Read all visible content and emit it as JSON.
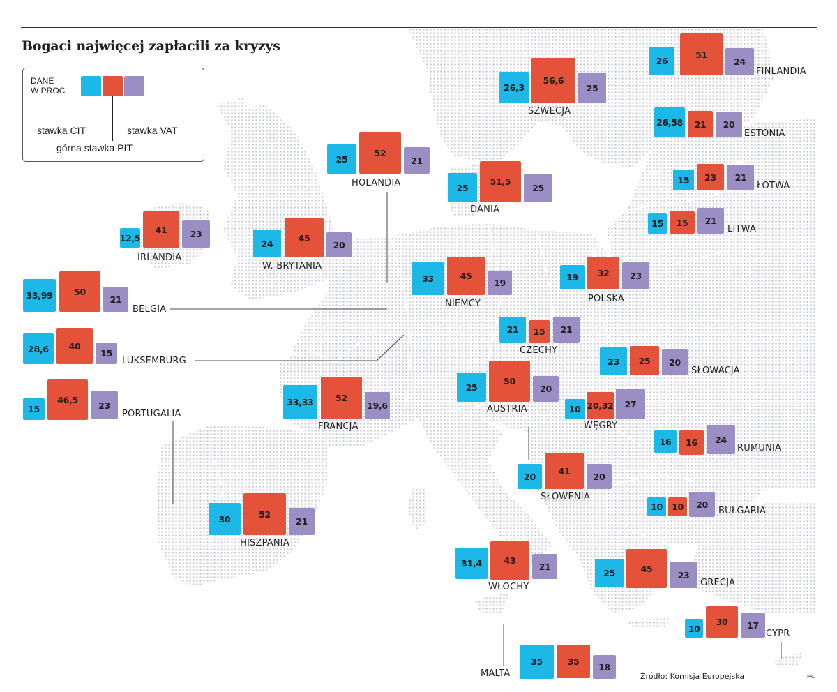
{
  "title": "Bogaci najwięcej zapłacili za kryzys",
  "legend": {
    "heading_line1": "DANE",
    "heading_line2": "W PROC.",
    "cit_label": "stawka CIT",
    "pit_label": "górna stawka PIT",
    "vat_label": "stawka VAT"
  },
  "colors": {
    "cit": "#1bb8e8",
    "pit": "#e4523a",
    "vat": "#9b8ec4",
    "map_land": "#c9cbd6",
    "map_border": "#b9bed4"
  },
  "countries": [
    {
      "name": "FINLANDIA",
      "cit": "26",
      "pit": "51",
      "vat": "24"
    },
    {
      "name": "SZWECJA",
      "cit": "26,3",
      "pit": "56,6",
      "vat": "25"
    },
    {
      "name": "ESTONIA",
      "cit": "26,58",
      "pit": "21",
      "vat": "20"
    },
    {
      "name": "HOLANDIA",
      "cit": "25",
      "pit": "52",
      "vat": "21"
    },
    {
      "name": "DANIA",
      "cit": "25",
      "pit": "51,5",
      "vat": "25"
    },
    {
      "name": "ŁOTWA",
      "cit": "15",
      "pit": "23",
      "vat": "21"
    },
    {
      "name": "LITWA",
      "cit": "15",
      "pit": "15",
      "vat": "21"
    },
    {
      "name": "IRLANDIA",
      "cit": "12,5",
      "pit": "41",
      "vat": "23"
    },
    {
      "name": "W. BRYTANIA",
      "cit": "24",
      "pit": "45",
      "vat": "20"
    },
    {
      "name": "NIEMCY",
      "cit": "33",
      "pit": "45",
      "vat": "19"
    },
    {
      "name": "POLSKA",
      "cit": "19",
      "pit": "32",
      "vat": "23"
    },
    {
      "name": "BELGIA",
      "cit": "33,99",
      "pit": "50",
      "vat": "21"
    },
    {
      "name": "CZECHY",
      "cit": "21",
      "pit": "15",
      "vat": "21"
    },
    {
      "name": "LUKSEMBURG",
      "cit": "28,6",
      "pit": "40",
      "vat": "15"
    },
    {
      "name": "SŁOWACJA",
      "cit": "23",
      "pit": "25",
      "vat": "20"
    },
    {
      "name": "AUSTRIA",
      "cit": "25",
      "pit": "50",
      "vat": "20"
    },
    {
      "name": "PORTUGALIA",
      "cit": "15",
      "pit": "46,5",
      "vat": "23"
    },
    {
      "name": "FRANCJA",
      "cit": "33,33",
      "pit": "52",
      "vat": "19,6"
    },
    {
      "name": "WĘGRY",
      "cit": "10",
      "pit": "20,32",
      "vat": "27"
    },
    {
      "name": "RUMUNIA",
      "cit": "16",
      "pit": "16",
      "vat": "24"
    },
    {
      "name": "SŁOWENIA",
      "cit": "20",
      "pit": "41",
      "vat": "20"
    },
    {
      "name": "BUŁGARIA",
      "cit": "10",
      "pit": "10",
      "vat": "20"
    },
    {
      "name": "HISZPANIA",
      "cit": "30",
      "pit": "52",
      "vat": "21"
    },
    {
      "name": "WŁOCHY",
      "cit": "31,4",
      "pit": "43",
      "vat": "21"
    },
    {
      "name": "GRECJA",
      "cit": "25",
      "pit": "45",
      "vat": "23"
    },
    {
      "name": "CYPR",
      "cit": "10",
      "pit": "30",
      "vat": "17"
    },
    {
      "name": "MALTA",
      "cit": "35",
      "pit": "35",
      "vat": "18"
    }
  ],
  "source": "Źródło: Komisja Europejska",
  "credit": "MC"
}
